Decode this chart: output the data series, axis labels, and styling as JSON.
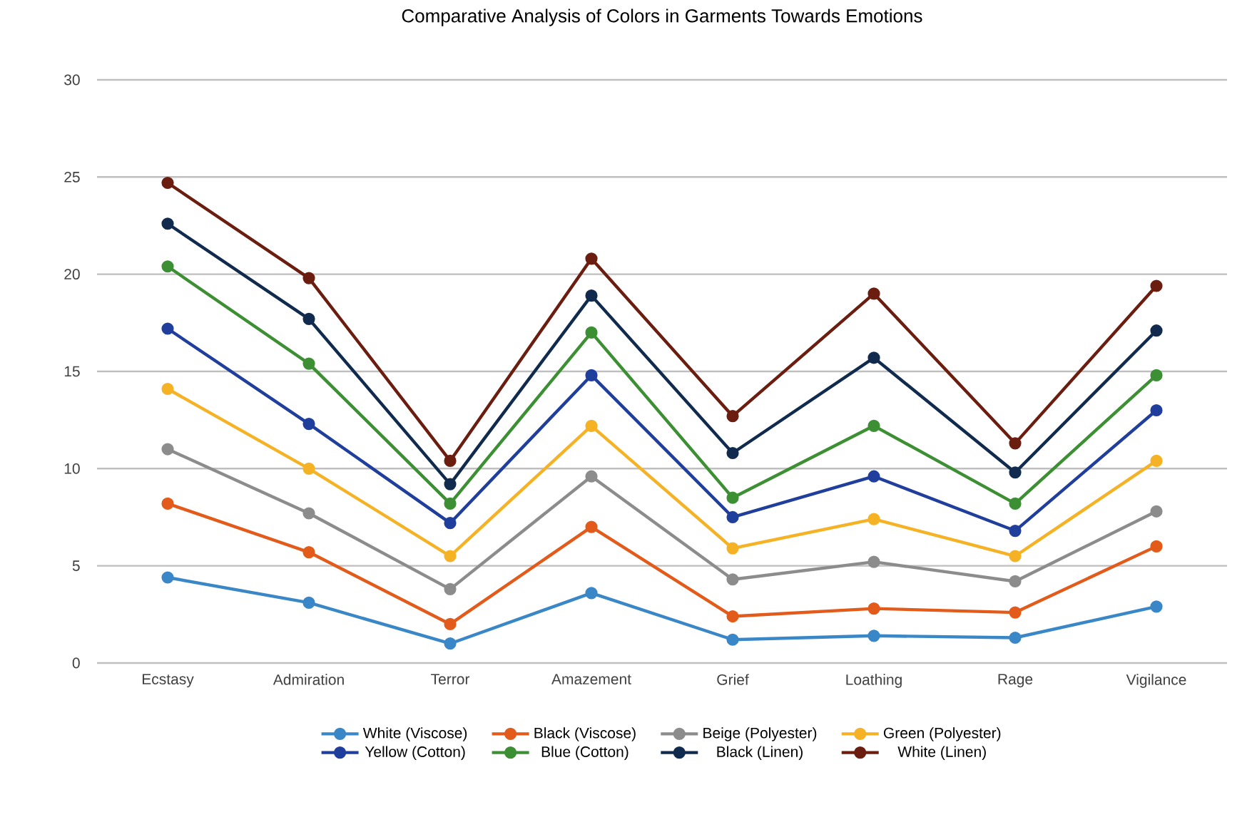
{
  "chart_data": {
    "type": "line",
    "title": "Comparative Analysis of Colors in Garments Towards Emotions",
    "categories": [
      "Ecstasy",
      "Admiration",
      "Terror",
      "Amazement",
      "Grief",
      "Loathing",
      "Rage",
      "Vigilance"
    ],
    "series": [
      {
        "name": "White (Viscose)",
        "color": "#3a87c8",
        "values": [
          4.4,
          3.1,
          1.0,
          3.6,
          1.2,
          1.4,
          1.3,
          2.9
        ]
      },
      {
        "name": "Black  (Viscose)",
        "color": "#e35b1b",
        "values": [
          8.2,
          5.7,
          2.0,
          7.0,
          2.4,
          2.8,
          2.6,
          6.0
        ]
      },
      {
        "name": "Beige (Polyester)",
        "color": "#8c8c8c",
        "values": [
          11.0,
          7.7,
          3.8,
          9.6,
          4.3,
          5.2,
          4.2,
          7.8
        ]
      },
      {
        "name": "Green (Polyester)",
        "color": "#f5b225",
        "values": [
          14.1,
          10.0,
          5.5,
          12.2,
          5.9,
          7.4,
          5.5,
          10.4
        ]
      },
      {
        "name": "Yellow (Cotton)",
        "color": "#203e9c",
        "values": [
          17.2,
          12.3,
          7.2,
          14.8,
          7.5,
          9.6,
          6.8,
          13.0
        ]
      },
      {
        "name": "Blue (Cotton)",
        "color": "#3d8f34",
        "values": [
          20.4,
          15.4,
          8.2,
          17.0,
          8.5,
          12.2,
          8.2,
          14.8
        ]
      },
      {
        "name": "Black (Linen)",
        "color": "#112b4f",
        "values": [
          22.6,
          17.7,
          9.2,
          18.9,
          10.8,
          15.7,
          9.8,
          17.1
        ]
      },
      {
        "name": "White (Linen)",
        "color": "#6b1e10",
        "values": [
          24.7,
          19.8,
          10.4,
          20.8,
          12.7,
          19.0,
          11.3,
          19.4
        ]
      }
    ],
    "ylim": [
      0,
      30
    ],
    "yticks": [
      0,
      5,
      10,
      15,
      20,
      25,
      30
    ],
    "grid": "y",
    "legend": "bottom",
    "marker": "circle",
    "line_style": "solid"
  }
}
